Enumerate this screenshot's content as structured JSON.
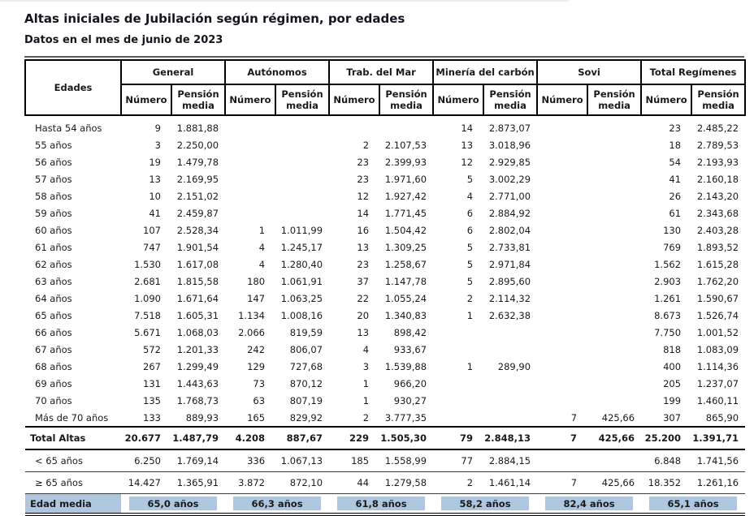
{
  "title": "Altas iniciales de Jubilación según régimen, por edades",
  "subtitle": "Datos en el mes de junio de 2023",
  "colors": {
    "highlight": "#afc7de",
    "border": "#000000"
  },
  "table": {
    "label_header": "Edades",
    "groups": [
      "General",
      "Autónomos",
      "Trab. del Mar",
      "Minería del carbón",
      "Sovi",
      "Total Regímenes"
    ],
    "sub_headers": [
      "Número",
      "Pensión media"
    ],
    "rows": [
      {
        "label": "Hasta 54 años",
        "values": [
          "9",
          "1.881,88",
          "",
          "",
          "",
          "",
          "14",
          "2.873,07",
          "",
          "",
          "23",
          "2.485,22"
        ]
      },
      {
        "label": "55 años",
        "values": [
          "3",
          "2.250,00",
          "",
          "",
          "2",
          "2.107,53",
          "13",
          "3.018,96",
          "",
          "",
          "18",
          "2.789,53"
        ]
      },
      {
        "label": "56 años",
        "values": [
          "19",
          "1.479,78",
          "",
          "",
          "23",
          "2.399,93",
          "12",
          "2.929,85",
          "",
          "",
          "54",
          "2.193,93"
        ]
      },
      {
        "label": "57 años",
        "values": [
          "13",
          "2.169,95",
          "",
          "",
          "23",
          "1.971,60",
          "5",
          "3.002,29",
          "",
          "",
          "41",
          "2.160,18"
        ]
      },
      {
        "label": "58 años",
        "values": [
          "10",
          "2.151,02",
          "",
          "",
          "12",
          "1.927,42",
          "4",
          "2.771,00",
          "",
          "",
          "26",
          "2.143,20"
        ]
      },
      {
        "label": "59 años",
        "values": [
          "41",
          "2.459,87",
          "",
          "",
          "14",
          "1.771,45",
          "6",
          "2.884,92",
          "",
          "",
          "61",
          "2.343,68"
        ]
      },
      {
        "label": "60 años",
        "values": [
          "107",
          "2.528,34",
          "1",
          "1.011,99",
          "16",
          "1.504,42",
          "6",
          "2.802,04",
          "",
          "",
          "130",
          "2.403,28"
        ]
      },
      {
        "label": "61 años",
        "values": [
          "747",
          "1.901,54",
          "4",
          "1.245,17",
          "13",
          "1.309,25",
          "5",
          "2.733,81",
          "",
          "",
          "769",
          "1.893,52"
        ]
      },
      {
        "label": "62 años",
        "values": [
          "1.530",
          "1.617,08",
          "4",
          "1.280,40",
          "23",
          "1.258,67",
          "5",
          "2.971,84",
          "",
          "",
          "1.562",
          "1.615,28"
        ]
      },
      {
        "label": "63 años",
        "values": [
          "2.681",
          "1.815,58",
          "180",
          "1.061,91",
          "37",
          "1.147,78",
          "5",
          "2.895,60",
          "",
          "",
          "2.903",
          "1.762,20"
        ]
      },
      {
        "label": "64 años",
        "values": [
          "1.090",
          "1.671,64",
          "147",
          "1.063,25",
          "22",
          "1.055,24",
          "2",
          "2.114,32",
          "",
          "",
          "1.261",
          "1.590,67"
        ]
      },
      {
        "label": "65 años",
        "values": [
          "7.518",
          "1.605,31",
          "1.134",
          "1.008,16",
          "20",
          "1.340,83",
          "1",
          "2.632,38",
          "",
          "",
          "8.673",
          "1.526,74"
        ]
      },
      {
        "label": "66 años",
        "values": [
          "5.671",
          "1.068,03",
          "2.066",
          "819,59",
          "13",
          "898,42",
          "",
          "",
          "",
          "",
          "7.750",
          "1.001,52"
        ]
      },
      {
        "label": "67 años",
        "values": [
          "572",
          "1.201,33",
          "242",
          "806,07",
          "4",
          "933,67",
          "",
          "",
          "",
          "",
          "818",
          "1.083,09"
        ]
      },
      {
        "label": "68 años",
        "values": [
          "267",
          "1.299,49",
          "129",
          "727,68",
          "3",
          "1.539,88",
          "1",
          "289,90",
          "",
          "",
          "400",
          "1.114,36"
        ]
      },
      {
        "label": "69 años",
        "values": [
          "131",
          "1.443,63",
          "73",
          "870,12",
          "1",
          "966,20",
          "",
          "",
          "",
          "",
          "205",
          "1.237,07"
        ]
      },
      {
        "label": "70 años",
        "values": [
          "135",
          "1.768,73",
          "63",
          "807,19",
          "1",
          "930,27",
          "",
          "",
          "",
          "",
          "199",
          "1.460,11"
        ]
      },
      {
        "label": "Más de 70 años",
        "values": [
          "133",
          "889,93",
          "165",
          "829,92",
          "2",
          "3.777,35",
          "",
          "",
          "7",
          "425,66",
          "307",
          "865,90"
        ]
      }
    ],
    "summary_rows": [
      {
        "label": "Total Altas",
        "style": "total",
        "values": [
          "20.677",
          "1.487,79",
          "4.208",
          "887,67",
          "229",
          "1.505,30",
          "79",
          "2.848,13",
          "7",
          "425,66",
          "25.200",
          "1.391,71"
        ]
      },
      {
        "label": "< 65 años",
        "style": "sub",
        "values": [
          "6.250",
          "1.769,14",
          "336",
          "1.067,13",
          "185",
          "1.558,99",
          "77",
          "2.884,15",
          "",
          "",
          "6.848",
          "1.741,56"
        ]
      },
      {
        "label": "≥ 65 años",
        "style": "sub",
        "values": [
          "14.427",
          "1.365,91",
          "3.872",
          "872,10",
          "44",
          "1.279,58",
          "2",
          "1.461,14",
          "7",
          "425,66",
          "18.352",
          "1.261,16"
        ]
      }
    ],
    "average_row": {
      "label": "Edad media",
      "values": [
        "65,0 años",
        "66,3 años",
        "61,8 años",
        "58,2 años",
        "82,4 años",
        "65,1 años"
      ]
    }
  }
}
